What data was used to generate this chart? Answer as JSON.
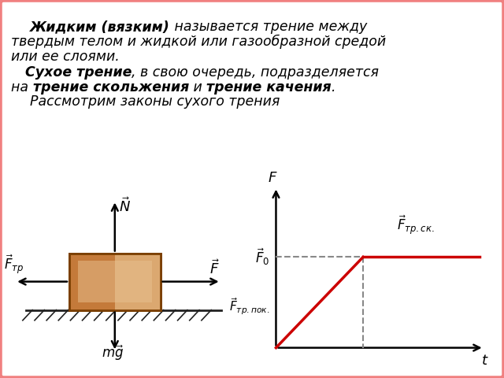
{
  "bg_color": "#ffffff",
  "salmon_border": "#f08080",
  "box_color_dark": "#7B3F00",
  "box_color_mid": "#C47A3A",
  "box_color_light": "#DBA870",
  "box_color_highlight": "#E8C090",
  "ground_color": "#222222",
  "graph_line_color": "#CC0000",
  "graph_dashed_color": "#888888",
  "font_size_main": 12.5,
  "font_size_label": 11,
  "font_size_arrow": 12,
  "para1_bold": "Жидким (вязким)",
  "para1_rest": " называется трение между",
  "para1_line2": "твердым телом и жидкой или газообразной средой",
  "para1_line3": "или ее слоями.",
  "para2_bold": "Сухое трение",
  "para2_rest": ", в свою очередь, подразделяется",
  "para3_prefix": "на ",
  "para3_bold1": "трение скольжения",
  "para3_mid": " и ",
  "para3_bold2": "трение качения",
  "para3_end": ".",
  "para4": "Рассмотрим законы сухого трения"
}
